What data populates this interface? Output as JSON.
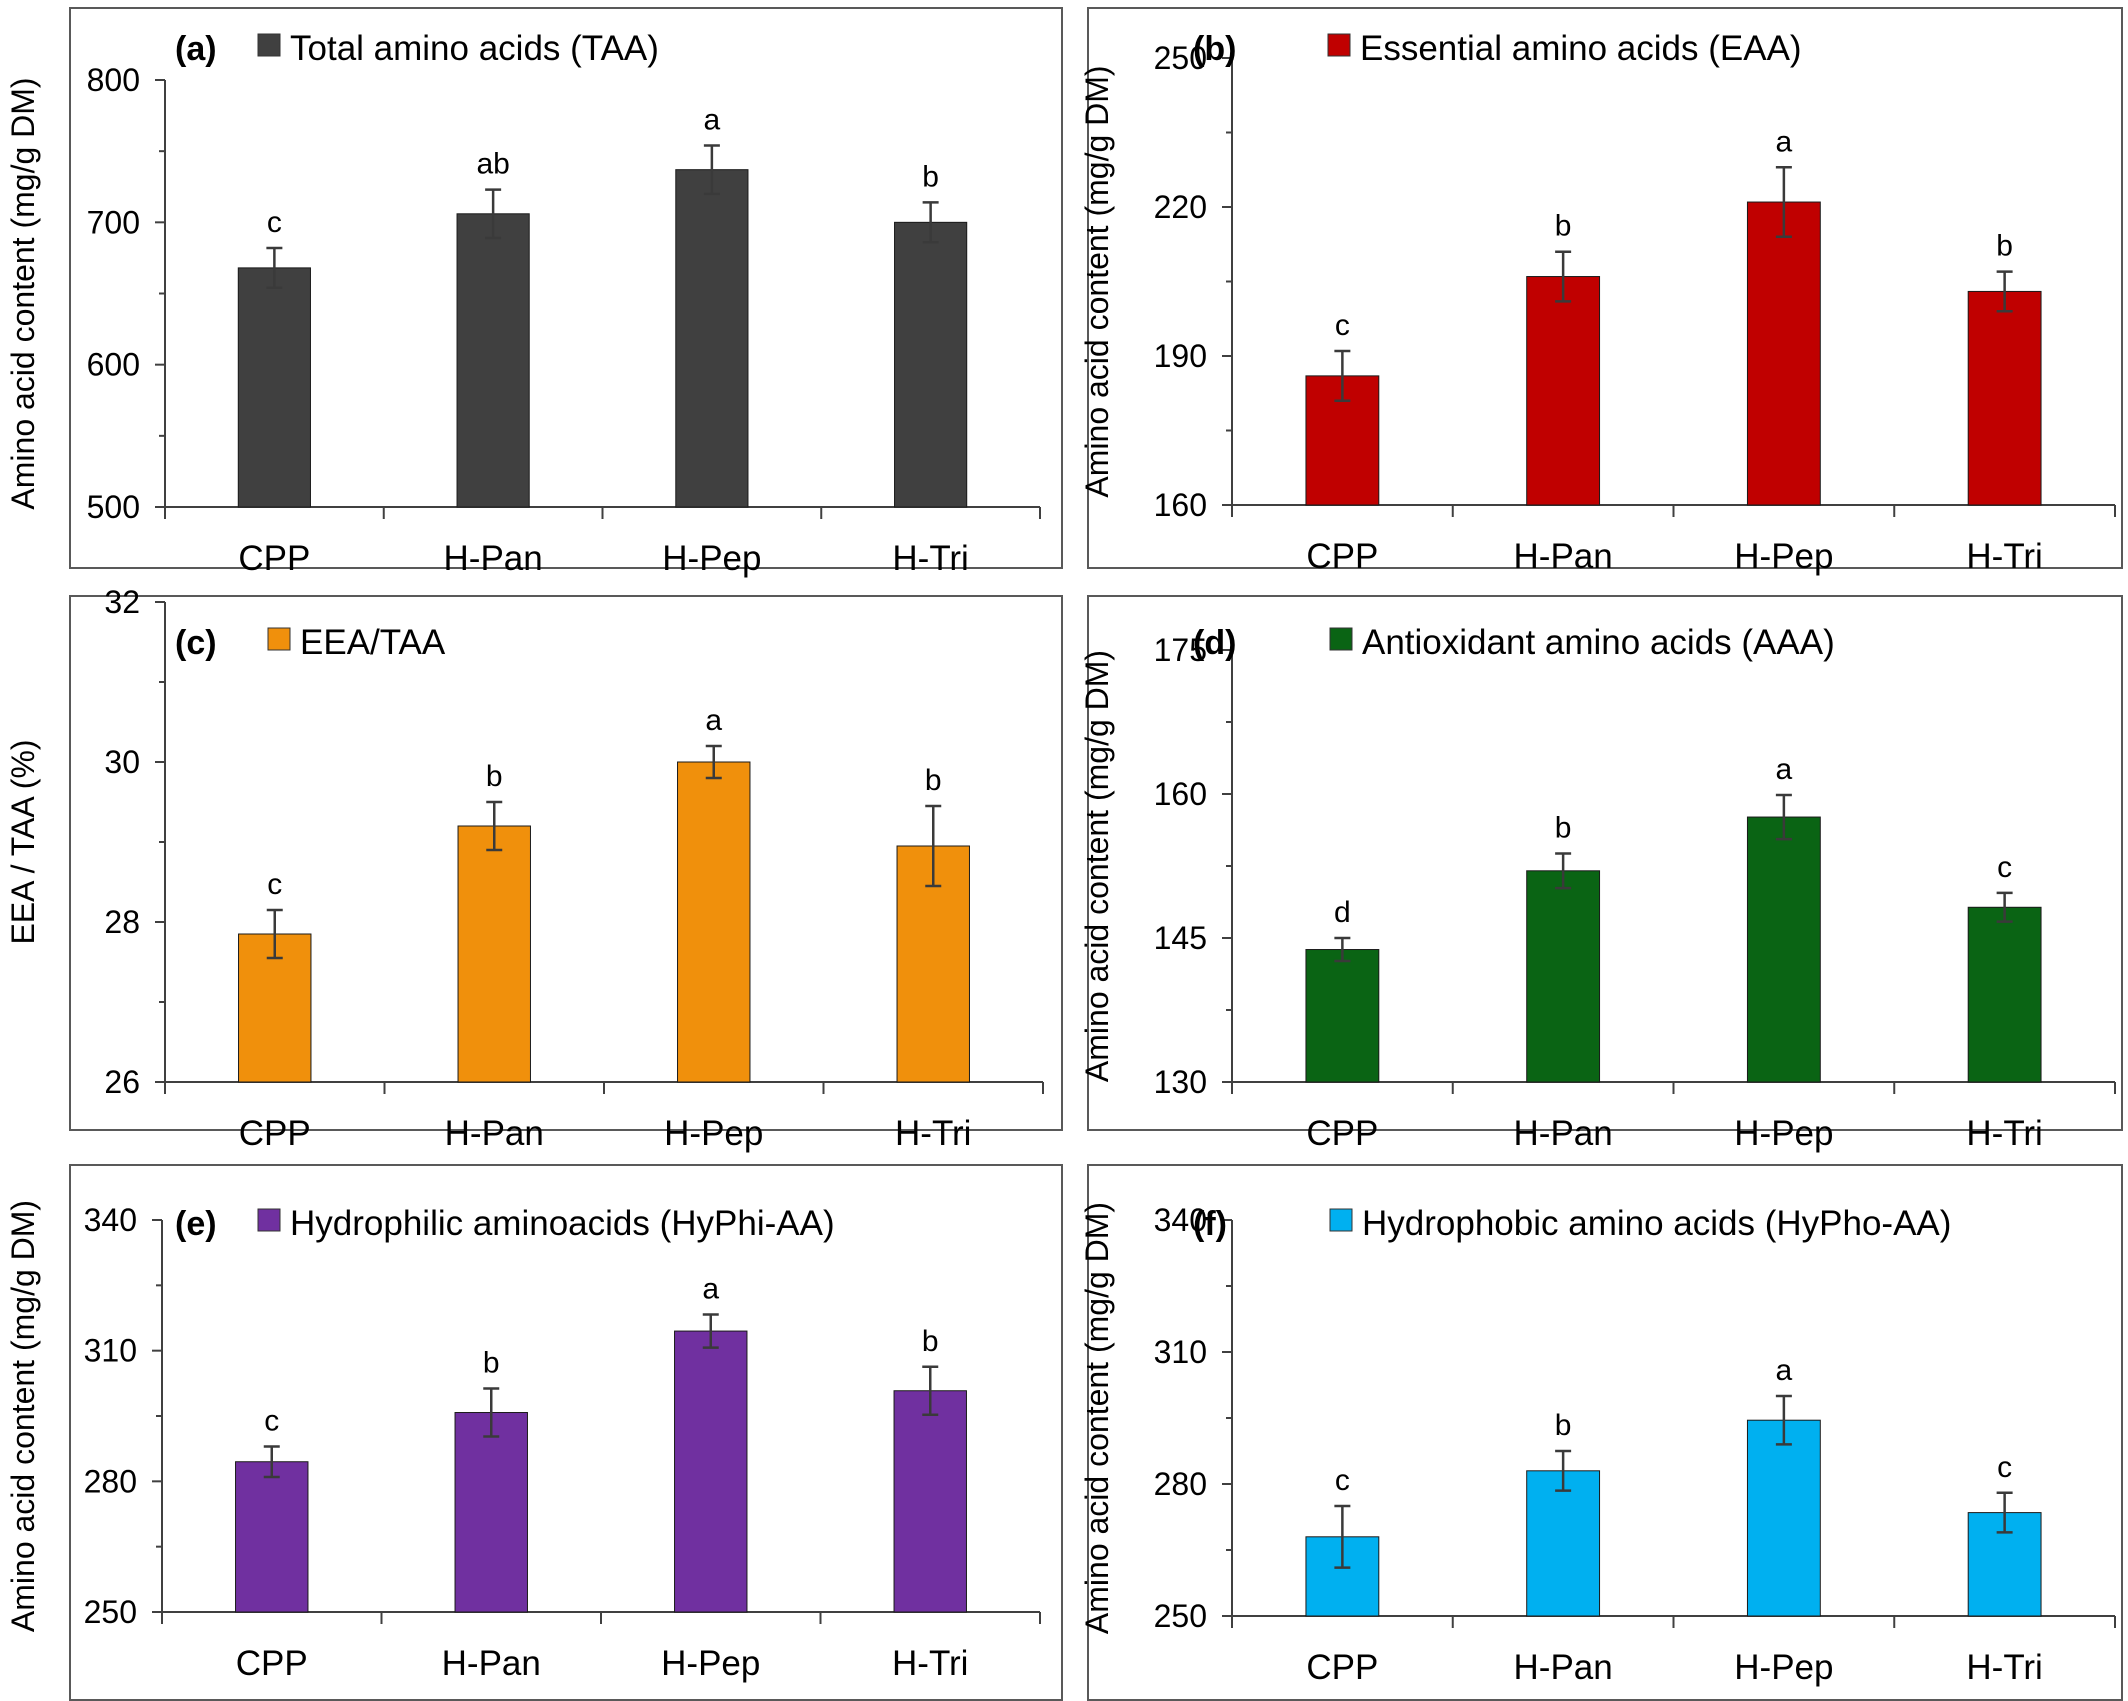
{
  "chart_data": [
    {
      "type": "bar",
      "panel_label": "(a)",
      "legend": "Total amino acids (TAA)",
      "color": "#404040",
      "ylabel": "Amino acid content (mg/g DM)",
      "ylim": [
        500,
        800
      ],
      "yticks": [
        500,
        600,
        700,
        800
      ],
      "categories": [
        "CPP",
        "H-Pan",
        "H-Pep",
        "H-Tri"
      ],
      "values": [
        668,
        706,
        737,
        700
      ],
      "errors": [
        14,
        17,
        17,
        14
      ],
      "significance": [
        "c",
        "ab",
        "a",
        "b"
      ]
    },
    {
      "type": "bar",
      "panel_label": "(b)",
      "legend": "Essential amino acids (EAA)",
      "color": "#c00000",
      "ylabel": "Amino acid content (mg/g DM)",
      "ylim": [
        160,
        250
      ],
      "yticks": [
        160,
        190,
        220,
        250
      ],
      "categories": [
        "CPP",
        "H-Pan",
        "H-Pep",
        "H-Tri"
      ],
      "values": [
        186,
        206,
        221,
        203
      ],
      "errors": [
        5,
        5,
        7,
        4
      ],
      "significance": [
        "c",
        "b",
        "a",
        "b"
      ]
    },
    {
      "type": "bar",
      "panel_label": "(c)",
      "legend": "EEA/TAA",
      "color": "#f0900c",
      "ylabel": "EEA / TAA (%)",
      "ylim": [
        26,
        32
      ],
      "yticks": [
        26,
        28,
        30,
        32
      ],
      "categories": [
        "CPP",
        "H-Pan",
        "H-Pep",
        "H-Tri"
      ],
      "values": [
        27.85,
        29.2,
        30.0,
        28.95
      ],
      "errors": [
        0.3,
        0.3,
        0.2,
        0.5
      ],
      "significance": [
        "c",
        "b",
        "a",
        "b"
      ]
    },
    {
      "type": "bar",
      "panel_label": "(d)",
      "legend": "Antioxidant amino acids (AAA)",
      "color": "#0a6414",
      "ylabel": "Amino acid content (mg/g DM)",
      "ylim": [
        130,
        175
      ],
      "yticks": [
        130,
        145,
        160,
        175
      ],
      "categories": [
        "CPP",
        "H-Pan",
        "H-Pep",
        "H-Tri"
      ],
      "values": [
        143.8,
        152,
        157.6,
        148.2
      ],
      "errors": [
        1.2,
        1.8,
        2.3,
        1.5
      ],
      "significance": [
        "d",
        "b",
        "a",
        "c"
      ]
    },
    {
      "type": "bar",
      "panel_label": "(e)",
      "legend": "Hydrophilic aminoacids (HyPhi-AA)",
      "color": "#7030a0",
      "ylabel": "Amino acid content (mg/g DM)",
      "ylim": [
        250,
        340
      ],
      "yticks": [
        250,
        280,
        310,
        340
      ],
      "categories": [
        "CPP",
        "H-Pan",
        "H-Pep",
        "H-Tri"
      ],
      "values": [
        284.5,
        295.8,
        314.5,
        300.8
      ],
      "errors": [
        3.5,
        5.5,
        3.8,
        5.5
      ],
      "significance": [
        "c",
        "b",
        "a",
        "b"
      ]
    },
    {
      "type": "bar",
      "panel_label": "(f)",
      "legend": "Hydrophobic amino acids (HyPho-AA)",
      "color": "#00b0f0",
      "ylabel": "Amino acid content (mg/g DM)",
      "ylim": [
        250,
        340
      ],
      "yticks": [
        250,
        280,
        310,
        340
      ],
      "categories": [
        "CPP",
        "H-Pan",
        "H-Pep",
        "H-Tri"
      ],
      "values": [
        268,
        283,
        294.5,
        273.5
      ],
      "errors": [
        7,
        4.5,
        5.5,
        4.5
      ],
      "significance": [
        "c",
        "b",
        "a",
        "c"
      ]
    }
  ]
}
